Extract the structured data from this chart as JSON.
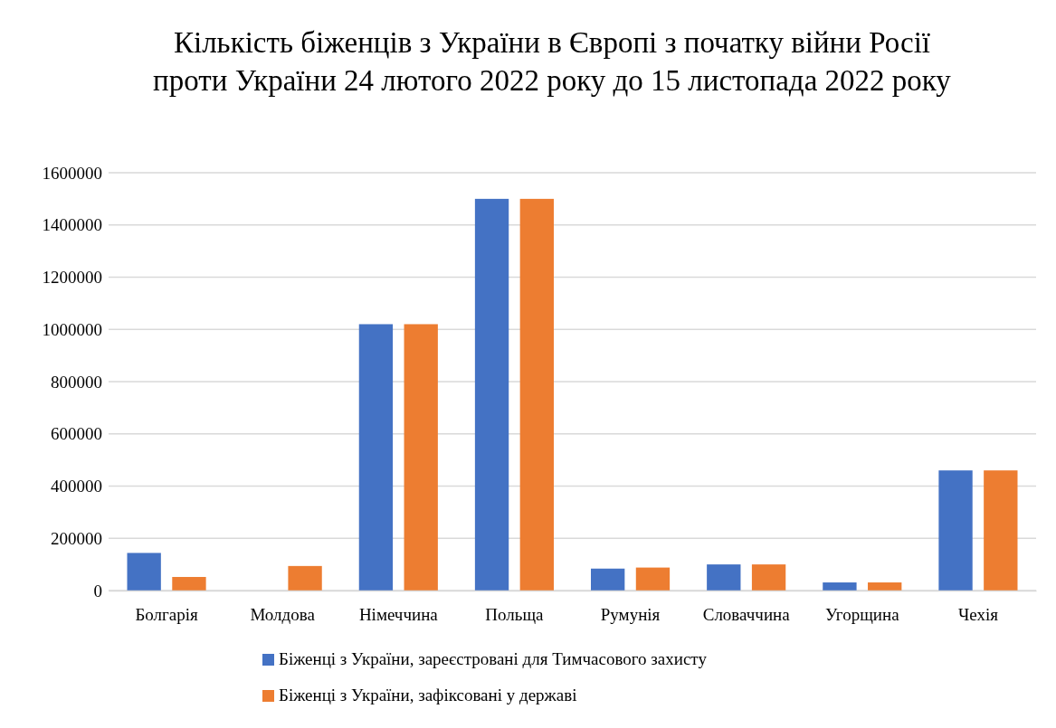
{
  "chart_data": {
    "type": "bar",
    "title": "Кількість біженців з України в Європі з початку війни Росії проти України 24 лютого 2022 року до 15 листопада 2022 року",
    "categories": [
      "Болгарія",
      "Молдова",
      "Німеччина",
      "Польща",
      "Румунія",
      "Словаччина",
      "Угорщина",
      "Чехія"
    ],
    "series": [
      {
        "name": "Біженці з України, зареєстровані для Тимчасового захисту",
        "color": "#4472c4",
        "values": [
          144000,
          null,
          1020000,
          1500000,
          84000,
          100000,
          31000,
          460000
        ]
      },
      {
        "name": "Біженці з України, зафіксовані у державі",
        "color": "#ed7d31",
        "values": [
          52000,
          94000,
          1020000,
          1500000,
          88000,
          100000,
          31000,
          460000
        ]
      }
    ],
    "ylim": [
      0,
      1600000
    ],
    "yticks": [
      0,
      200000,
      400000,
      600000,
      800000,
      1000000,
      1200000,
      1400000,
      1600000
    ],
    "grid": "y",
    "legend": "bottom"
  }
}
